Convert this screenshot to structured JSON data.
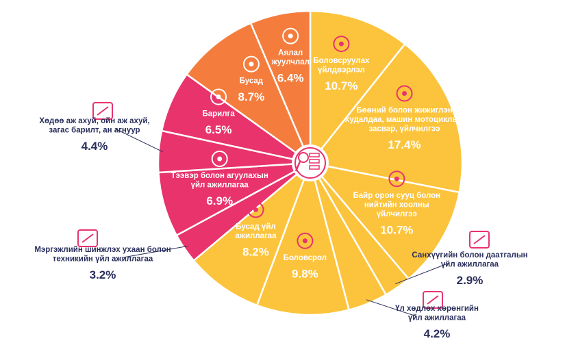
{
  "chart_data": {
    "type": "pie",
    "slices": [
      {
        "label": [
          "Боловсруулах",
          "үйлдвэрлэл"
        ],
        "display": "10.7%",
        "value": 10.7,
        "color": "#fcc43c",
        "icon": "industrial-plant-icon"
      },
      {
        "label": [
          "Бөөний болон жижиглэн",
          "худалдаа, машин мотоциклын",
          "засвар, үйлчилгээ"
        ],
        "display": "17.4%",
        "value": 17.4,
        "color": "#fcc43c",
        "icon": "motorcycle-shop-icon"
      },
      {
        "label": [
          "Байр орон сууц болон",
          "нийтийн хоолны",
          "үйлчилгээ"
        ],
        "display": "10.7%",
        "value": 10.7,
        "color": "#fcc43c",
        "icon": "hotel-restaurant-icon"
      },
      {
        "label": [
          "Санхүүгийн болон даатгалын",
          "үйл ажиллагаа"
        ],
        "display": "2.9%",
        "value": 2.9,
        "color": "#fcc43c",
        "icon": "finance-chart-icon"
      },
      {
        "label": [
          "Үл хөдлөх хөрөнгийн",
          "үйл ажиллагаа"
        ],
        "display": "4.2%",
        "value": 4.2,
        "color": "#fcc43c",
        "icon": "real-estate-icon"
      },
      {
        "label": [
          "Боловсрол"
        ],
        "display": "9.8%",
        "value": 9.8,
        "color": "#fcc43c",
        "icon": "education-icon"
      },
      {
        "label": [
          "Бусад үйл",
          "ажиллагаа"
        ],
        "display": "8.2%",
        "value": 8.2,
        "color": "#fcc43c",
        "icon": "tools-icon"
      },
      {
        "label": [
          "Мэргэжлийн шинжлэх ухаан болон",
          "техникийн үйл ажиллагаа"
        ],
        "display": "3.2%",
        "value": 3.2,
        "color": "#e8336d",
        "icon": "science-tech-icon"
      },
      {
        "label": [
          "Тээвэр болон агуулахын",
          "үйл ажиллагаа"
        ],
        "display": "6.9%",
        "value": 6.9,
        "color": "#e8336d",
        "icon": "forklift-icon"
      },
      {
        "label": [
          "Хөдөө аж ахуй, ойн аж ахуй,",
          "загас барилт, ан агнуур"
        ],
        "display": "4.4%",
        "value": 4.4,
        "color": "#e8336d",
        "icon": "agriculture-icon"
      },
      {
        "label": [
          "Барилга"
        ],
        "display": "6.5%",
        "value": 6.5,
        "color": "#e8336d",
        "icon": "construction-crane-icon"
      },
      {
        "label": [
          "Бусад"
        ],
        "display": "8.7%",
        "value": 8.7,
        "color": "#f47d3d",
        "icon": "more-dots-icon"
      },
      {
        "label": [
          "Аялал",
          "жуулчлал"
        ],
        "display": "6.4%",
        "value": 6.4,
        "color": "#f47d3d",
        "icon": "travel-icon"
      }
    ]
  }
}
